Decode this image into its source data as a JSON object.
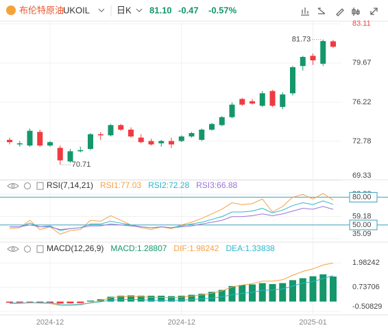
{
  "header": {
    "name": "布伦特原油",
    "symbol": "UKOIL",
    "period": "日K",
    "price": "81.10",
    "change": "-0.47",
    "change_pct": "-0.57%"
  },
  "chart_data": [
    {
      "type": "candlestick",
      "categories": [
        null,
        null,
        null,
        null,
        "2024-12",
        null,
        null,
        null,
        null,
        null,
        null,
        null,
        null,
        null,
        null,
        null,
        null,
        "2024-12",
        null,
        null,
        null,
        null,
        null,
        null,
        null,
        null,
        null,
        null,
        null,
        null,
        "2025-01",
        null,
        null
      ],
      "open": [
        72.9,
        72.5,
        72.4,
        73.6,
        72.4,
        72.2,
        71.0,
        71.9,
        72.1,
        73.4,
        73.3,
        74.2,
        73.8,
        73.1,
        72.8,
        72.6,
        72.8,
        72.8,
        73.2,
        72.9,
        73.8,
        74.2,
        74.9,
        76.5,
        76.3,
        75.9,
        77.2,
        75.8,
        77.0,
        79.4,
        80.3,
        79.6,
        81.57
      ],
      "high": [
        73.1,
        72.8,
        73.9,
        73.8,
        72.8,
        72.4,
        72.1,
        72.3,
        73.5,
        73.6,
        74.3,
        74.3,
        74.0,
        73.4,
        73.0,
        72.9,
        73.1,
        73.3,
        73.6,
        73.9,
        74.4,
        75.0,
        76.2,
        76.6,
        76.5,
        77.2,
        77.3,
        77.1,
        79.4,
        80.3,
        80.5,
        81.73,
        81.7
      ],
      "low": [
        72.5,
        72.3,
        72.3,
        72.3,
        72.3,
        70.71,
        70.9,
        71.8,
        72.0,
        72.9,
        73.2,
        73.7,
        73.1,
        72.6,
        72.4,
        72.3,
        72.2,
        72.7,
        73.1,
        72.8,
        73.7,
        74.1,
        74.8,
        75.9,
        76.0,
        75.8,
        75.8,
        75.6,
        76.8,
        79.0,
        79.5,
        79.4,
        81.0
      ],
      "close": [
        72.7,
        72.6,
        73.7,
        72.4,
        72.7,
        71.1,
        71.9,
        72.0,
        73.4,
        73.3,
        74.2,
        73.8,
        73.2,
        72.7,
        72.5,
        72.8,
        72.5,
        73.2,
        73.5,
        73.8,
        74.3,
        74.9,
        76.0,
        76.0,
        76.1,
        77.0,
        75.9,
        76.9,
        79.3,
        80.2,
        79.9,
        81.6,
        81.1
      ],
      "up_color": "#14976a",
      "down_color": "#f03a3f",
      "ylim": [
        69.33,
        83.4
      ],
      "yticks": [
        83.11,
        79.67,
        76.22,
        72.78,
        69.33
      ],
      "grid": true
    },
    {
      "type": "line",
      "title": "RSI(7,14,21)",
      "series": [
        {
          "name": "RSI1:77.03",
          "color": "#f5a043",
          "values": [
            46,
            47,
            55,
            45,
            48,
            40,
            44,
            45,
            55,
            54,
            60,
            55,
            50,
            47,
            45,
            48,
            46,
            50,
            53,
            57,
            62,
            67,
            74,
            72,
            73,
            78,
            64,
            70,
            80,
            83,
            78,
            84,
            77.03
          ]
        },
        {
          "name": "RSI2:72.28",
          "color": "#2bb5cc",
          "values": [
            48,
            48,
            52,
            48,
            49,
            44,
            46,
            47,
            51,
            51,
            54,
            52,
            50,
            48,
            47,
            48,
            47,
            49,
            51,
            53,
            56,
            59,
            64,
            64,
            65,
            68,
            63,
            66,
            71,
            74,
            72,
            76,
            72.28
          ]
        },
        {
          "name": "RSI3:66.88",
          "color": "#9b72d8",
          "values": [
            48,
            48,
            50,
            48,
            48,
            45,
            46,
            47,
            49,
            49,
            51,
            50,
            49,
            48,
            47,
            48,
            47,
            48,
            49,
            51,
            53,
            55,
            59,
            59,
            60,
            62,
            60,
            62,
            65,
            68,
            67,
            70,
            66.88
          ]
        }
      ],
      "levels": [
        {
          "value": 80,
          "label": "80.00"
        },
        {
          "value": 50,
          "label": "50.00"
        }
      ],
      "level_color": "#3a9fb8",
      "ylim": [
        35.09,
        83.28
      ],
      "yticks": [
        83.28,
        59.18,
        35.09
      ]
    },
    {
      "type": "combo",
      "title": "MACD(12,26,9)",
      "series": [
        {
          "name": "MACD:1.28807",
          "kind": "bar",
          "color": "#14976a",
          "negative_color": "#f03a3f",
          "values": [
            -0.06,
            -0.05,
            -0.04,
            -0.06,
            -0.07,
            -0.1,
            -0.09,
            -0.08,
            0.05,
            0.12,
            0.25,
            0.3,
            0.32,
            0.3,
            0.3,
            0.3,
            0.28,
            0.3,
            0.35,
            0.4,
            0.5,
            0.6,
            0.8,
            0.85,
            0.88,
            0.95,
            0.9,
            0.95,
            1.1,
            1.2,
            1.3,
            1.4,
            1.28807
          ]
        },
        {
          "name": "DIF:1.98242",
          "kind": "line",
          "color": "#f5a043",
          "values": [
            -0.1,
            -0.1,
            -0.05,
            -0.08,
            -0.1,
            -0.2,
            -0.2,
            -0.18,
            -0.05,
            0.05,
            0.2,
            0.25,
            0.27,
            0.25,
            0.22,
            0.22,
            0.2,
            0.23,
            0.28,
            0.34,
            0.43,
            0.55,
            0.75,
            0.85,
            0.92,
            1.05,
            1.05,
            1.12,
            1.35,
            1.55,
            1.68,
            1.88,
            1.98242
          ]
        },
        {
          "name": "DEA:1.33838",
          "kind": "line",
          "color": "#2bb5cc",
          "values": [
            -0.07,
            -0.075,
            -0.07,
            -0.05,
            -0.065,
            -0.15,
            -0.155,
            -0.14,
            -0.075,
            -0.01,
            0.075,
            0.1,
            0.11,
            0.1,
            0.07,
            0.07,
            0.06,
            0.08,
            0.105,
            0.14,
            0.18,
            0.25,
            0.35,
            0.425,
            0.48,
            0.575,
            0.6,
            0.645,
            0.8,
            0.95,
            1.03,
            1.18,
            1.33838
          ]
        }
      ],
      "ylim": [
        -0.65,
        2.1
      ],
      "yticks": [
        1.98242,
        0.73706,
        -0.50829
      ]
    }
  ]
}
